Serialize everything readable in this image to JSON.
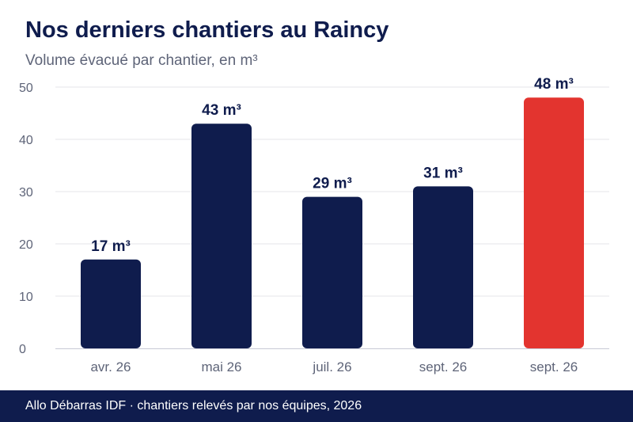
{
  "header": {
    "title": "Nos derniers chantiers au Raincy",
    "subtitle": "Volume évacué par chantier, en m³"
  },
  "footer": {
    "text": "Allo Débarras IDF · chantiers relevés par nos équipes, 2026"
  },
  "colors": {
    "bar": "#0f1c4d",
    "highlight": "#e3342f",
    "grid": "#e6e6ea",
    "axis": "#c8c9d6",
    "tick": "#5e6478",
    "label": "#0f1c4d"
  },
  "chart_data": {
    "type": "bar",
    "categories": [
      "avr. 26",
      "mai 26",
      "juil. 26",
      "sept. 26",
      "sept. 26"
    ],
    "values": [
      17,
      43,
      29,
      31,
      48
    ],
    "data_labels": [
      "17 m³",
      "43 m³",
      "29 m³",
      "31 m³",
      "48 m³"
    ],
    "highlight_index": 4,
    "yticks": [
      0,
      10,
      20,
      30,
      40,
      50
    ],
    "ylim": [
      0,
      50
    ],
    "grid": true
  }
}
